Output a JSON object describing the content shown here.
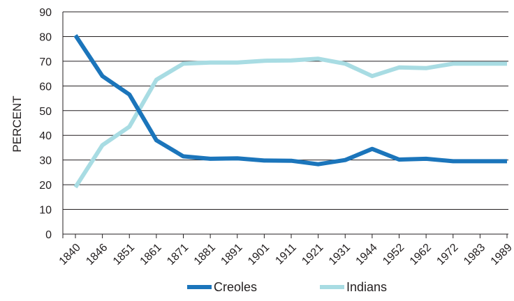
{
  "chart_data": {
    "type": "line",
    "title": "",
    "xlabel": "",
    "ylabel": "PERCENT",
    "ylim": [
      0,
      90
    ],
    "yticks": [
      0,
      10,
      20,
      30,
      40,
      50,
      60,
      70,
      80,
      90
    ],
    "grid": "horizontal",
    "legend_position": "bottom",
    "categories": [
      "1840",
      "1846",
      "1851",
      "1861",
      "1871",
      "1881",
      "1891",
      "1901",
      "1911",
      "1921",
      "1931",
      "1944",
      "1952",
      "1962",
      "1972",
      "1983",
      "1989"
    ],
    "series": [
      {
        "name": "Creoles",
        "color": "#1b75bb",
        "values": [
          80.5,
          64,
          56.5,
          38,
          31.5,
          30.5,
          30.7,
          29.8,
          29.7,
          28.3,
          30,
          34.5,
          30.2,
          30.5,
          29.5,
          29.5,
          29.5
        ]
      },
      {
        "name": "Indians",
        "color": "#a8dce3",
        "values": [
          19,
          36,
          43.5,
          62.5,
          69,
          69.5,
          69.5,
          70.2,
          70.3,
          71,
          69,
          64,
          67.5,
          67.2,
          69,
          69,
          69
        ]
      }
    ]
  }
}
